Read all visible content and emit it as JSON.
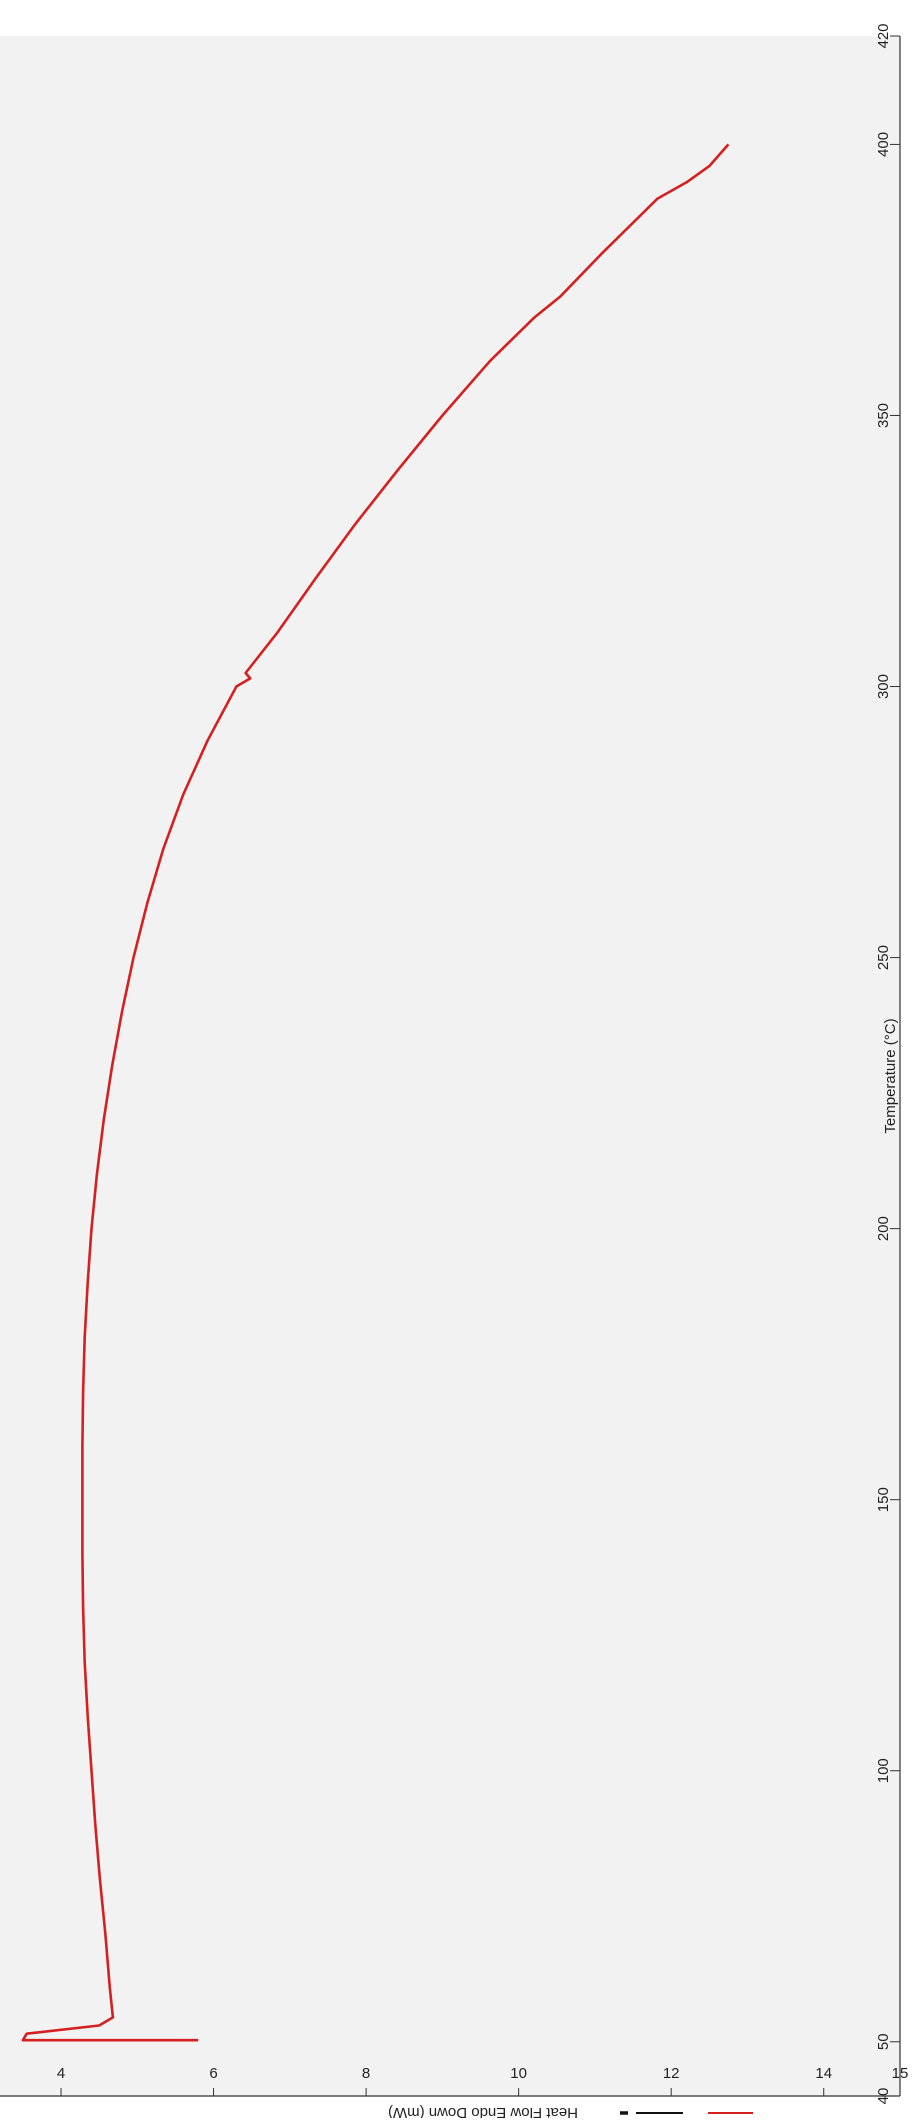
{
  "chart_data": {
    "type": "line",
    "title": "",
    "xlabel": "Temperature (°C)",
    "ylabel": "Heat Flow Endo Down (mW)",
    "xlim": [
      40,
      420
    ],
    "ylim": [
      3.2,
      15
    ],
    "x_ticks": [
      40,
      50,
      100,
      150,
      200,
      250,
      300,
      350,
      400,
      420
    ],
    "y_ticks": [
      4,
      6,
      8,
      10,
      12,
      14,
      15
    ],
    "grid": false,
    "legend_position": "bottom-left",
    "series": [
      {
        "color": "#d42020",
        "points": [
          [
            50.3,
            5.8
          ],
          [
            50.3,
            3.5
          ],
          [
            51.5,
            3.55
          ],
          [
            53,
            4.5
          ],
          [
            54.5,
            4.68
          ],
          [
            60,
            4.64
          ],
          [
            70,
            4.58
          ],
          [
            80,
            4.51
          ],
          [
            90,
            4.45
          ],
          [
            100,
            4.4
          ],
          [
            110,
            4.35
          ],
          [
            120,
            4.31
          ],
          [
            130,
            4.29
          ],
          [
            140,
            4.28
          ],
          [
            150,
            4.28
          ],
          [
            160,
            4.28
          ],
          [
            170,
            4.29
          ],
          [
            180,
            4.31
          ],
          [
            190,
            4.35
          ],
          [
            200,
            4.4
          ],
          [
            210,
            4.47
          ],
          [
            220,
            4.56
          ],
          [
            230,
            4.67
          ],
          [
            240,
            4.8
          ],
          [
            250,
            4.95
          ],
          [
            260,
            5.13
          ],
          [
            270,
            5.34
          ],
          [
            280,
            5.6
          ],
          [
            290,
            5.92
          ],
          [
            300,
            6.3
          ],
          [
            301.5,
            6.48
          ],
          [
            302.5,
            6.42
          ],
          [
            310,
            6.84
          ],
          [
            320,
            7.34
          ],
          [
            330,
            7.86
          ],
          [
            340,
            8.42
          ],
          [
            350,
            9.0
          ],
          [
            360,
            9.62
          ],
          [
            368,
            10.2
          ],
          [
            372,
            10.55
          ],
          [
            380,
            11.1
          ],
          [
            390,
            11.82
          ],
          [
            393,
            12.2
          ],
          [
            396,
            12.5
          ],
          [
            400,
            12.75
          ]
        ]
      }
    ]
  }
}
